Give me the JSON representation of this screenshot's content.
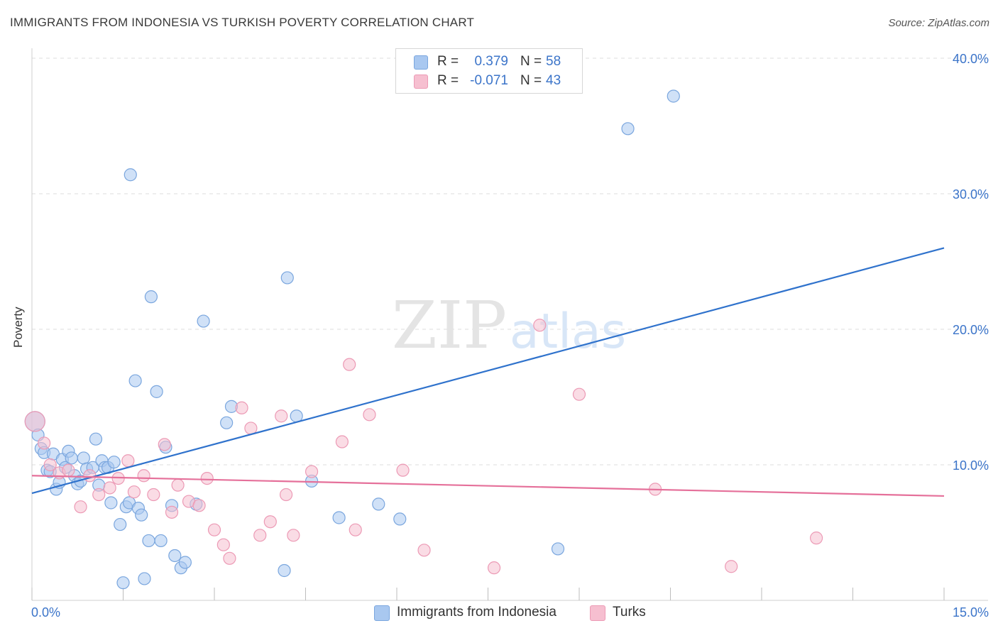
{
  "header": {
    "title": "IMMIGRANTS FROM INDONESIA VS TURKISH POVERTY CORRELATION CHART",
    "source": "Source: ZipAtlas.com"
  },
  "watermark": {
    "zip": "ZIP",
    "atlas": "atlas"
  },
  "legend_top": {
    "rows": [
      {
        "r_label": "R =",
        "r_value": "0.379",
        "n_label": "N =",
        "n_value": "58"
      },
      {
        "r_label": "R =",
        "r_value": "-0.071",
        "n_label": "N =",
        "n_value": "43"
      }
    ]
  },
  "legend_bottom": {
    "items": [
      {
        "label": "Immigrants from Indonesia"
      },
      {
        "label": "Turks"
      }
    ]
  },
  "colors": {
    "blue_fill": "#a9c8f0",
    "blue_stroke": "#7aa6de",
    "blue_line": "#2f72cc",
    "pink_fill": "#f6bfd0",
    "pink_stroke": "#ec9ab5",
    "pink_line": "#e5709a",
    "tick_label": "#3b74c9",
    "grid": "#dcdcdc"
  },
  "chart_data": {
    "type": "scatter",
    "ylabel": "Poverty",
    "xlim": [
      0,
      15
    ],
    "ylim": [
      0,
      40
    ],
    "x_tick_labels": [
      {
        "value": 0,
        "label": "0.0%"
      },
      {
        "value": 15,
        "label": "15.0%"
      }
    ],
    "y_tick_labels": [
      {
        "value": 10,
        "label": "10.0%"
      },
      {
        "value": 20,
        "label": "20.0%"
      },
      {
        "value": 30,
        "label": "30.0%"
      },
      {
        "value": 40,
        "label": "40.0%"
      }
    ],
    "grid": true,
    "legend": "top-center",
    "series": [
      {
        "name": "Immigrants from Indonesia",
        "color": "#a9c8f0",
        "trend": {
          "x": [
            0,
            15
          ],
          "y": [
            7.9,
            26.0
          ]
        },
        "points": [
          {
            "x": 0.05,
            "y": 13.2
          },
          {
            "x": 0.1,
            "y": 12.2
          },
          {
            "x": 0.15,
            "y": 11.2
          },
          {
            "x": 0.2,
            "y": 10.9
          },
          {
            "x": 0.25,
            "y": 9.6
          },
          {
            "x": 0.3,
            "y": 9.5
          },
          {
            "x": 0.35,
            "y": 10.8
          },
          {
            "x": 0.4,
            "y": 8.2
          },
          {
            "x": 0.45,
            "y": 8.7
          },
          {
            "x": 0.5,
            "y": 10.4
          },
          {
            "x": 0.55,
            "y": 9.8
          },
          {
            "x": 0.6,
            "y": 11.0
          },
          {
            "x": 0.65,
            "y": 10.5
          },
          {
            "x": 0.7,
            "y": 9.2
          },
          {
            "x": 0.75,
            "y": 8.6
          },
          {
            "x": 0.8,
            "y": 8.8
          },
          {
            "x": 0.85,
            "y": 10.5
          },
          {
            "x": 0.9,
            "y": 9.7
          },
          {
            "x": 1.0,
            "y": 9.8
          },
          {
            "x": 1.05,
            "y": 11.9
          },
          {
            "x": 1.1,
            "y": 8.5
          },
          {
            "x": 1.15,
            "y": 10.3
          },
          {
            "x": 1.2,
            "y": 9.8
          },
          {
            "x": 1.25,
            "y": 9.8
          },
          {
            "x": 1.3,
            "y": 7.2
          },
          {
            "x": 1.35,
            "y": 10.2
          },
          {
            "x": 1.45,
            "y": 5.6
          },
          {
            "x": 1.5,
            "y": 1.3
          },
          {
            "x": 1.55,
            "y": 6.9
          },
          {
            "x": 1.6,
            "y": 7.2
          },
          {
            "x": 1.62,
            "y": 31.4
          },
          {
            "x": 1.7,
            "y": 16.2
          },
          {
            "x": 1.75,
            "y": 6.8
          },
          {
            "x": 1.8,
            "y": 6.3
          },
          {
            "x": 1.85,
            "y": 1.6
          },
          {
            "x": 1.92,
            "y": 4.4
          },
          {
            "x": 1.96,
            "y": 22.4
          },
          {
            "x": 2.05,
            "y": 15.4
          },
          {
            "x": 2.12,
            "y": 4.4
          },
          {
            "x": 2.2,
            "y": 11.3
          },
          {
            "x": 2.3,
            "y": 7.0
          },
          {
            "x": 2.35,
            "y": 3.3
          },
          {
            "x": 2.45,
            "y": 2.4
          },
          {
            "x": 2.52,
            "y": 2.8
          },
          {
            "x": 2.7,
            "y": 7.1
          },
          {
            "x": 2.82,
            "y": 20.6
          },
          {
            "x": 3.2,
            "y": 13.1
          },
          {
            "x": 3.28,
            "y": 14.3
          },
          {
            "x": 4.15,
            "y": 2.2
          },
          {
            "x": 4.2,
            "y": 23.8
          },
          {
            "x": 4.35,
            "y": 13.6
          },
          {
            "x": 4.6,
            "y": 8.8
          },
          {
            "x": 5.05,
            "y": 6.1
          },
          {
            "x": 5.7,
            "y": 7.1
          },
          {
            "x": 6.05,
            "y": 6.0
          },
          {
            "x": 8.65,
            "y": 3.8
          },
          {
            "x": 9.8,
            "y": 34.8
          },
          {
            "x": 10.55,
            "y": 37.2
          }
        ]
      },
      {
        "name": "Turks",
        "color": "#f6bfd0",
        "trend": {
          "x": [
            0,
            15
          ],
          "y": [
            9.2,
            7.7
          ]
        },
        "points": [
          {
            "x": 0.05,
            "y": 13.2
          },
          {
            "x": 0.2,
            "y": 11.6
          },
          {
            "x": 0.3,
            "y": 10.0
          },
          {
            "x": 0.45,
            "y": 9.4
          },
          {
            "x": 0.6,
            "y": 9.6
          },
          {
            "x": 0.8,
            "y": 6.9
          },
          {
            "x": 0.95,
            "y": 9.2
          },
          {
            "x": 1.1,
            "y": 7.8
          },
          {
            "x": 1.28,
            "y": 8.3
          },
          {
            "x": 1.42,
            "y": 9.0
          },
          {
            "x": 1.58,
            "y": 10.3
          },
          {
            "x": 1.68,
            "y": 8.0
          },
          {
            "x": 1.84,
            "y": 9.2
          },
          {
            "x": 2.0,
            "y": 7.8
          },
          {
            "x": 2.18,
            "y": 11.5
          },
          {
            "x": 2.3,
            "y": 6.5
          },
          {
            "x": 2.4,
            "y": 8.5
          },
          {
            "x": 2.58,
            "y": 7.3
          },
          {
            "x": 2.75,
            "y": 7.0
          },
          {
            "x": 2.88,
            "y": 9.0
          },
          {
            "x": 3.0,
            "y": 5.2
          },
          {
            "x": 3.15,
            "y": 4.1
          },
          {
            "x": 3.25,
            "y": 3.1
          },
          {
            "x": 3.45,
            "y": 14.2
          },
          {
            "x": 3.6,
            "y": 12.7
          },
          {
            "x": 3.75,
            "y": 4.8
          },
          {
            "x": 3.92,
            "y": 5.8
          },
          {
            "x": 4.1,
            "y": 13.6
          },
          {
            "x": 4.18,
            "y": 7.8
          },
          {
            "x": 4.3,
            "y": 4.8
          },
          {
            "x": 4.6,
            "y": 9.5
          },
          {
            "x": 5.1,
            "y": 11.7
          },
          {
            "x": 5.22,
            "y": 17.4
          },
          {
            "x": 5.32,
            "y": 5.2
          },
          {
            "x": 5.55,
            "y": 13.7
          },
          {
            "x": 6.1,
            "y": 9.6
          },
          {
            "x": 6.45,
            "y": 3.7
          },
          {
            "x": 7.6,
            "y": 2.4
          },
          {
            "x": 8.35,
            "y": 20.3
          },
          {
            "x": 9.0,
            "y": 15.2
          },
          {
            "x": 10.25,
            "y": 8.2
          },
          {
            "x": 11.5,
            "y": 2.5
          },
          {
            "x": 12.9,
            "y": 4.6
          }
        ]
      }
    ]
  }
}
